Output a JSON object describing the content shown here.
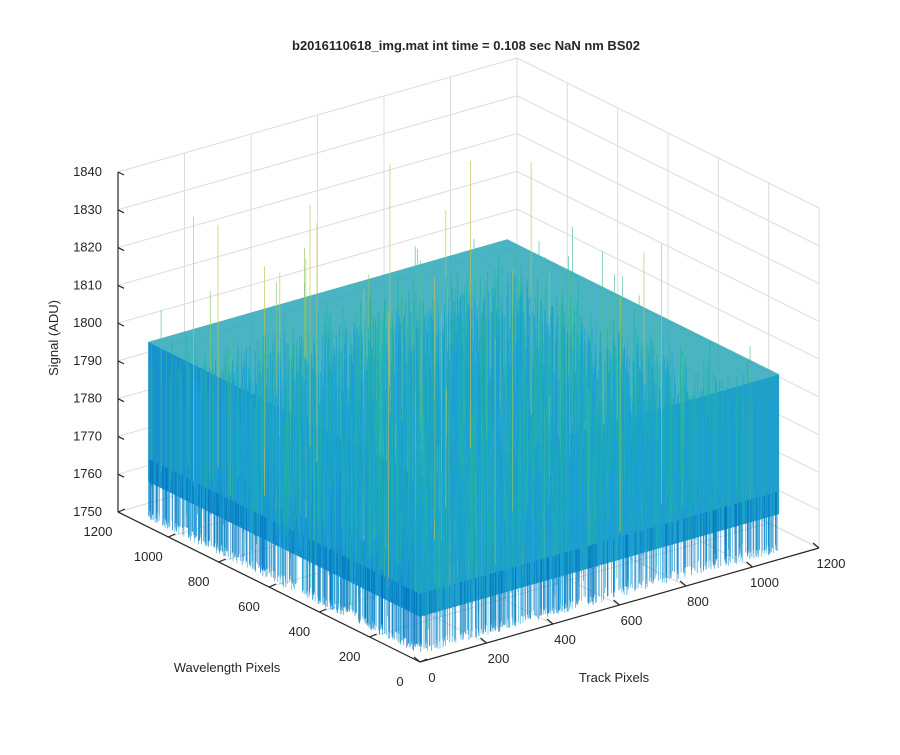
{
  "chart_data": {
    "type": "surface",
    "title": "b2016110618_img.mat int time = 0.108 sec  NaN nm BS02",
    "xlabel": "Track Pixels",
    "ylabel": "Wavelength Pixels",
    "zlabel": "Signal (ADU)",
    "xlim": [
      0,
      1200
    ],
    "ylim": [
      0,
      1200
    ],
    "zlim": [
      1750,
      1840
    ],
    "xticks": [
      "0",
      "200",
      "400",
      "600",
      "800",
      "1000",
      "1200"
    ],
    "yticks": [
      "0",
      "200",
      "400",
      "600",
      "800",
      "1000",
      "1200"
    ],
    "zticks": [
      "1750",
      "1760",
      "1770",
      "1780",
      "1790",
      "1800",
      "1810",
      "1820",
      "1830",
      "1840"
    ],
    "data_extent": {
      "x": [
        0,
        1080
      ],
      "y": [
        0,
        1080
      ]
    },
    "signal_range": [
      1755,
      1835
    ],
    "typical_signal": [
      1770,
      1795
    ],
    "colormap": [
      "#0072bd",
      "#1a9fd6",
      "#20b2aa",
      "#4cbf95",
      "#8bc66a",
      "#c6c24d"
    ],
    "grid": true,
    "view": "3d-oblique"
  }
}
